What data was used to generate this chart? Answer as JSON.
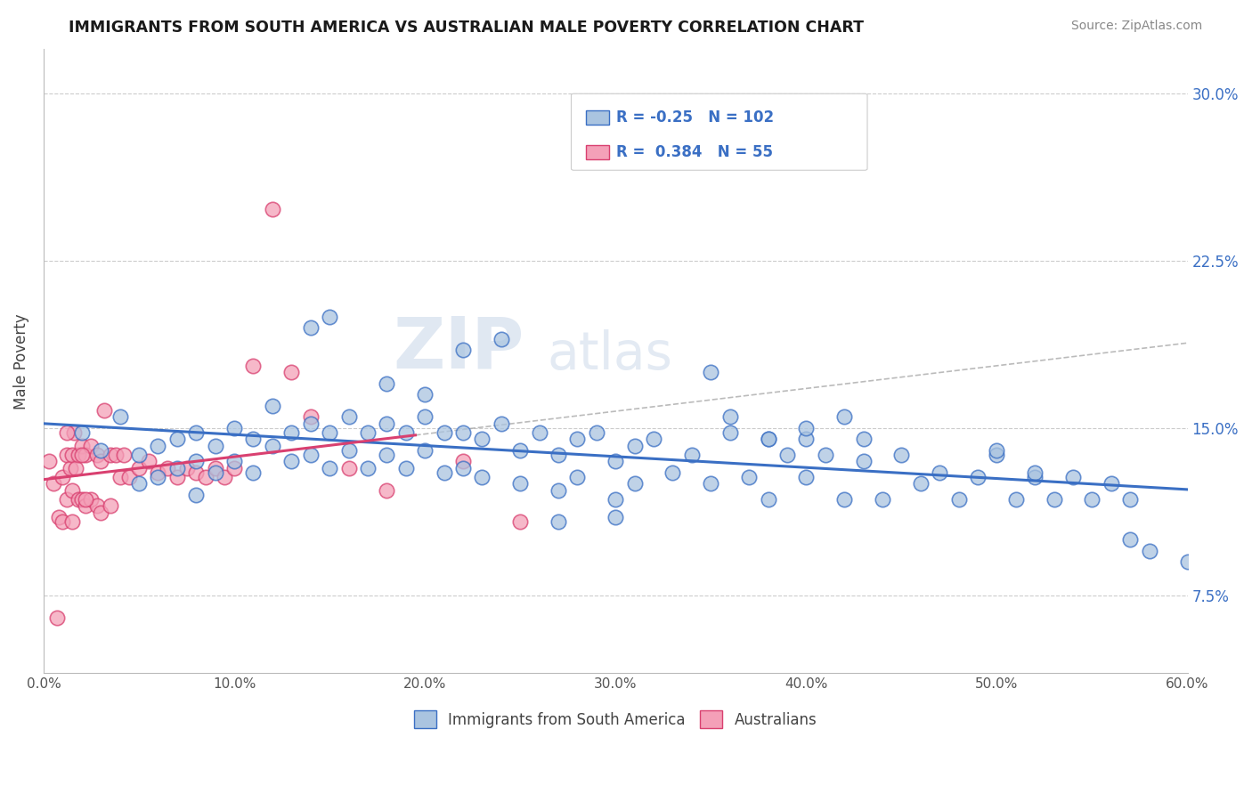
{
  "title": "IMMIGRANTS FROM SOUTH AMERICA VS AUSTRALIAN MALE POVERTY CORRELATION CHART",
  "source_text": "Source: ZipAtlas.com",
  "xlabel": "",
  "ylabel": "Male Poverty",
  "legend_label_blue": "Immigrants from South America",
  "legend_label_pink": "Australians",
  "r_blue": -0.25,
  "n_blue": 102,
  "r_pink": 0.384,
  "n_pink": 55,
  "xlim": [
    0.0,
    0.6
  ],
  "ylim": [
    0.04,
    0.32
  ],
  "xticks": [
    0.0,
    0.1,
    0.2,
    0.3,
    0.4,
    0.5,
    0.6
  ],
  "yticks": [
    0.075,
    0.15,
    0.225,
    0.3
  ],
  "ytick_labels": [
    "7.5%",
    "15.0%",
    "22.5%",
    "30.0%"
  ],
  "xtick_labels": [
    "0.0%",
    "10.0%",
    "20.0%",
    "30.0%",
    "40.0%",
    "50.0%",
    "60.0%"
  ],
  "color_blue": "#aac4e0",
  "color_pink": "#f4a0b8",
  "trend_blue": "#3a6fc4",
  "trend_pink": "#d94070",
  "background_color": "#ffffff",
  "grid_color": "#cccccc",
  "watermark_ZIP": "ZIP",
  "watermark_atlas": "atlas",
  "blue_points_x": [
    0.02,
    0.03,
    0.04,
    0.05,
    0.05,
    0.06,
    0.06,
    0.07,
    0.07,
    0.08,
    0.08,
    0.08,
    0.09,
    0.09,
    0.1,
    0.1,
    0.11,
    0.11,
    0.12,
    0.12,
    0.13,
    0.13,
    0.14,
    0.14,
    0.15,
    0.15,
    0.16,
    0.16,
    0.17,
    0.17,
    0.18,
    0.18,
    0.19,
    0.19,
    0.2,
    0.2,
    0.21,
    0.21,
    0.22,
    0.22,
    0.23,
    0.23,
    0.24,
    0.25,
    0.25,
    0.26,
    0.27,
    0.27,
    0.28,
    0.28,
    0.29,
    0.3,
    0.3,
    0.31,
    0.31,
    0.32,
    0.33,
    0.34,
    0.35,
    0.36,
    0.37,
    0.38,
    0.38,
    0.39,
    0.4,
    0.4,
    0.41,
    0.42,
    0.43,
    0.44,
    0.45,
    0.46,
    0.47,
    0.48,
    0.49,
    0.5,
    0.51,
    0.52,
    0.53,
    0.54,
    0.55,
    0.56,
    0.57,
    0.57,
    0.58,
    0.14,
    0.2,
    0.22,
    0.3,
    0.35,
    0.36,
    0.42,
    0.18,
    0.15,
    0.43,
    0.5,
    0.24,
    0.4,
    0.52,
    0.38,
    0.6,
    0.27
  ],
  "blue_points_y": [
    0.148,
    0.14,
    0.155,
    0.138,
    0.125,
    0.142,
    0.128,
    0.145,
    0.132,
    0.148,
    0.135,
    0.12,
    0.142,
    0.13,
    0.15,
    0.135,
    0.145,
    0.13,
    0.16,
    0.142,
    0.148,
    0.135,
    0.152,
    0.138,
    0.148,
    0.132,
    0.155,
    0.14,
    0.148,
    0.132,
    0.152,
    0.138,
    0.148,
    0.132,
    0.155,
    0.14,
    0.148,
    0.13,
    0.148,
    0.132,
    0.145,
    0.128,
    0.152,
    0.14,
    0.125,
    0.148,
    0.138,
    0.122,
    0.145,
    0.128,
    0.148,
    0.135,
    0.118,
    0.142,
    0.125,
    0.145,
    0.13,
    0.138,
    0.125,
    0.148,
    0.128,
    0.145,
    0.118,
    0.138,
    0.145,
    0.128,
    0.138,
    0.118,
    0.135,
    0.118,
    0.138,
    0.125,
    0.13,
    0.118,
    0.128,
    0.138,
    0.118,
    0.128,
    0.118,
    0.128,
    0.118,
    0.125,
    0.1,
    0.118,
    0.095,
    0.195,
    0.165,
    0.185,
    0.11,
    0.175,
    0.155,
    0.155,
    0.17,
    0.2,
    0.145,
    0.14,
    0.19,
    0.15,
    0.13,
    0.145,
    0.09,
    0.108
  ],
  "pink_points_x": [
    0.003,
    0.005,
    0.007,
    0.008,
    0.01,
    0.01,
    0.012,
    0.012,
    0.014,
    0.015,
    0.015,
    0.015,
    0.017,
    0.018,
    0.018,
    0.02,
    0.02,
    0.022,
    0.022,
    0.025,
    0.025,
    0.028,
    0.028,
    0.03,
    0.03,
    0.032,
    0.035,
    0.035,
    0.038,
    0.04,
    0.042,
    0.045,
    0.05,
    0.055,
    0.06,
    0.065,
    0.07,
    0.075,
    0.08,
    0.085,
    0.09,
    0.095,
    0.1,
    0.11,
    0.12,
    0.13,
    0.14,
    0.16,
    0.18,
    0.22,
    0.25,
    0.016,
    0.02,
    0.022,
    0.012
  ],
  "pink_points_y": [
    0.135,
    0.125,
    0.065,
    0.11,
    0.128,
    0.108,
    0.138,
    0.118,
    0.132,
    0.138,
    0.122,
    0.108,
    0.132,
    0.118,
    0.138,
    0.142,
    0.118,
    0.138,
    0.115,
    0.142,
    0.118,
    0.138,
    0.115,
    0.135,
    0.112,
    0.158,
    0.138,
    0.115,
    0.138,
    0.128,
    0.138,
    0.128,
    0.132,
    0.135,
    0.13,
    0.132,
    0.128,
    0.132,
    0.13,
    0.128,
    0.132,
    0.128,
    0.132,
    0.178,
    0.248,
    0.175,
    0.155,
    0.132,
    0.122,
    0.135,
    0.108,
    0.148,
    0.138,
    0.118,
    0.148
  ]
}
